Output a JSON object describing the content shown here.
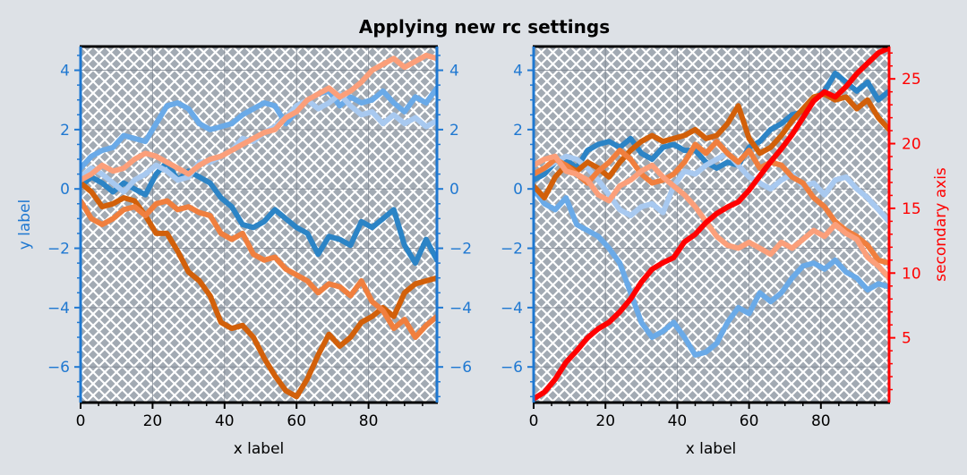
{
  "chart_data": [
    {
      "type": "line",
      "title": "Applying new rc settings",
      "xlabel": "x label",
      "ylabel": "y label",
      "xlim": [
        0,
        99
      ],
      "ylim": [
        -7.2,
        4.8
      ],
      "xticks": [
        "0",
        "20",
        "40",
        "60",
        "80"
      ],
      "yticks": [
        "−6",
        "−4",
        "−2",
        "0",
        "2",
        "4"
      ],
      "ytick_values": [
        -6,
        -4,
        -2,
        0,
        2,
        4
      ],
      "xtick_values": [
        0,
        20,
        40,
        60,
        80
      ],
      "grid": true,
      "hatch": "crosshatch",
      "axis_color": "#1f78d1",
      "series": [
        {
          "color": "#2c84c6",
          "x": [
            0,
            3,
            6,
            9,
            12,
            15,
            18,
            21,
            24,
            27,
            30,
            33,
            36,
            39,
            42,
            45,
            48,
            51,
            54,
            57,
            60,
            63,
            66,
            69,
            72,
            75,
            78,
            81,
            84,
            87,
            90,
            93,
            96,
            99
          ],
          "values": [
            0.1,
            0.4,
            0.2,
            -0.1,
            0.2,
            0.0,
            -0.2,
            0.5,
            0.9,
            0.3,
            0.6,
            0.4,
            0.2,
            -0.3,
            -0.6,
            -1.2,
            -1.3,
            -1.1,
            -0.7,
            -1.0,
            -1.3,
            -1.5,
            -2.2,
            -1.6,
            -1.7,
            -1.9,
            -1.1,
            -1.3,
            -1.0,
            -0.7,
            -1.9,
            -2.5,
            -1.7,
            -2.4
          ]
        },
        {
          "color": "#6aaae8",
          "x": [
            0,
            3,
            6,
            9,
            12,
            15,
            18,
            21,
            24,
            27,
            30,
            33,
            36,
            39,
            42,
            45,
            48,
            51,
            54,
            57,
            60,
            63,
            66,
            69,
            72,
            75,
            78,
            81,
            84,
            87,
            90,
            93,
            96,
            99
          ],
          "values": [
            0.7,
            1.1,
            1.3,
            1.4,
            1.8,
            1.7,
            1.6,
            2.2,
            2.8,
            2.9,
            2.7,
            2.2,
            2.0,
            2.1,
            2.2,
            2.5,
            2.7,
            2.9,
            2.8,
            2.2,
            2.6,
            3.0,
            3.2,
            3.3,
            2.8,
            3.1,
            2.9,
            3.0,
            3.3,
            2.9,
            2.6,
            3.1,
            2.9,
            3.4
          ]
        },
        {
          "color": "#a8c9f0",
          "x": [
            0,
            3,
            6,
            9,
            12,
            15,
            18,
            21,
            24,
            27,
            30,
            33,
            36,
            39,
            42,
            45,
            48,
            51,
            54,
            57,
            60,
            63,
            66,
            69,
            72,
            75,
            78,
            81,
            84,
            87,
            90,
            93,
            96,
            99
          ],
          "values": [
            0.4,
            0.7,
            0.5,
            0.2,
            -0.1,
            0.3,
            0.5,
            0.8,
            0.6,
            0.3,
            0.4,
            0.9,
            0.9,
            1.1,
            1.3,
            1.7,
            1.6,
            1.9,
            2.1,
            2.4,
            2.8,
            3.0,
            2.7,
            2.9,
            3.2,
            2.8,
            2.5,
            2.6,
            2.2,
            2.5,
            2.2,
            2.4,
            2.1,
            2.3
          ]
        },
        {
          "color": "#d2600a",
          "x": [
            0,
            3,
            6,
            9,
            12,
            15,
            18,
            21,
            24,
            27,
            30,
            33,
            36,
            39,
            42,
            45,
            48,
            51,
            54,
            57,
            60,
            63,
            66,
            69,
            72,
            75,
            78,
            81,
            84,
            87,
            90,
            93,
            96,
            99
          ],
          "values": [
            0.2,
            -0.1,
            -0.6,
            -0.5,
            -0.3,
            -0.4,
            -0.9,
            -1.5,
            -1.5,
            -2.1,
            -2.8,
            -3.1,
            -3.6,
            -4.5,
            -4.7,
            -4.6,
            -5.0,
            -5.7,
            -6.3,
            -6.8,
            -7.0,
            -6.4,
            -5.6,
            -4.9,
            -5.3,
            -5.0,
            -4.5,
            -4.3,
            -4.0,
            -4.3,
            -3.5,
            -3.2,
            -3.1,
            -3.0
          ]
        },
        {
          "color": "#f07f3e",
          "x": [
            0,
            3,
            6,
            9,
            12,
            15,
            18,
            21,
            24,
            27,
            30,
            33,
            36,
            39,
            42,
            45,
            48,
            51,
            54,
            57,
            60,
            63,
            66,
            69,
            72,
            75,
            78,
            81,
            84,
            87,
            90,
            93,
            96,
            99
          ],
          "values": [
            -0.4,
            -1.0,
            -1.2,
            -1.0,
            -0.7,
            -0.6,
            -0.9,
            -0.5,
            -0.4,
            -0.7,
            -0.6,
            -0.8,
            -0.9,
            -1.5,
            -1.7,
            -1.5,
            -2.2,
            -2.4,
            -2.3,
            -2.7,
            -2.9,
            -3.1,
            -3.5,
            -3.2,
            -3.3,
            -3.6,
            -3.1,
            -3.8,
            -4.1,
            -4.7,
            -4.4,
            -5.0,
            -4.6,
            -4.3
          ]
        },
        {
          "color": "#fb9f7a",
          "x": [
            0,
            3,
            6,
            9,
            12,
            15,
            18,
            21,
            24,
            27,
            30,
            33,
            36,
            39,
            42,
            45,
            48,
            51,
            54,
            57,
            60,
            63,
            66,
            69,
            72,
            75,
            78,
            81,
            84,
            87,
            90,
            93,
            96,
            99
          ],
          "values": [
            0.3,
            0.5,
            0.8,
            0.6,
            0.7,
            1.0,
            1.2,
            1.1,
            0.9,
            0.7,
            0.5,
            0.8,
            1.0,
            1.1,
            1.3,
            1.5,
            1.7,
            1.9,
            2.0,
            2.4,
            2.6,
            3.0,
            3.2,
            3.4,
            3.1,
            3.3,
            3.6,
            4.0,
            4.2,
            4.4,
            4.1,
            4.3,
            4.5,
            4.4
          ]
        }
      ]
    },
    {
      "type": "line",
      "xlabel": "x label",
      "ylabel": "",
      "y2label": "secondary axis",
      "xlim": [
        0,
        99
      ],
      "ylim": [
        -7.2,
        4.8
      ],
      "y2lim": [
        0,
        27.5
      ],
      "xticks": [
        "0",
        "20",
        "40",
        "60",
        "80"
      ],
      "xtick_values": [
        0,
        20,
        40,
        60,
        80
      ],
      "yticks": [
        "−6",
        "−4",
        "−2",
        "0",
        "2",
        "4"
      ],
      "ytick_values": [
        -6,
        -4,
        -2,
        0,
        2,
        4
      ],
      "y2ticks": [
        "5",
        "10",
        "15",
        "20",
        "25"
      ],
      "y2tick_values": [
        5,
        10,
        15,
        20,
        25
      ],
      "grid": true,
      "hatch": "crosshatch",
      "axis_color": "#1f78d1",
      "y2_color": "#ff0000",
      "series": [
        {
          "color": "#2c84c6",
          "x": [
            0,
            3,
            6,
            9,
            12,
            15,
            18,
            21,
            24,
            27,
            30,
            33,
            36,
            39,
            42,
            45,
            48,
            51,
            54,
            57,
            60,
            63,
            66,
            69,
            72,
            75,
            78,
            81,
            84,
            87,
            90,
            93,
            96,
            99
          ],
          "values": [
            0.3,
            0.5,
            0.9,
            1.0,
            0.7,
            1.3,
            1.5,
            1.6,
            1.4,
            1.7,
            1.2,
            1.0,
            1.4,
            1.5,
            1.3,
            1.3,
            0.9,
            0.7,
            0.9,
            0.8,
            1.4,
            1.6,
            2.0,
            2.2,
            2.5,
            2.6,
            3.0,
            3.3,
            3.9,
            3.6,
            3.3,
            3.6,
            3.0,
            3.3
          ]
        },
        {
          "color": "#6aaae8",
          "x": [
            0,
            3,
            6,
            9,
            12,
            15,
            18,
            21,
            24,
            27,
            30,
            33,
            36,
            39,
            42,
            45,
            48,
            51,
            54,
            57,
            60,
            63,
            66,
            69,
            72,
            75,
            78,
            81,
            84,
            87,
            90,
            93,
            96,
            99
          ],
          "values": [
            0.0,
            -0.5,
            -0.7,
            -0.3,
            -1.2,
            -1.4,
            -1.6,
            -2.0,
            -2.5,
            -3.5,
            -4.5,
            -5.0,
            -4.8,
            -4.5,
            -5.0,
            -5.6,
            -5.5,
            -5.2,
            -4.5,
            -4.0,
            -4.2,
            -3.5,
            -3.8,
            -3.5,
            -3.0,
            -2.6,
            -2.5,
            -2.7,
            -2.4,
            -2.8,
            -3.0,
            -3.4,
            -3.2,
            -3.3
          ]
        },
        {
          "color": "#a8c9f0",
          "x": [
            0,
            3,
            6,
            9,
            12,
            15,
            18,
            21,
            24,
            27,
            30,
            33,
            36,
            39,
            42,
            45,
            48,
            51,
            54,
            57,
            60,
            63,
            66,
            69,
            72,
            75,
            78,
            81,
            84,
            87,
            90,
            93,
            96,
            99
          ],
          "values": [
            0.5,
            0.7,
            0.9,
            1.1,
            1.0,
            0.7,
            0.3,
            -0.2,
            -0.7,
            -0.9,
            -0.6,
            -0.5,
            -0.8,
            0.1,
            0.6,
            0.5,
            0.8,
            1.0,
            1.2,
            0.8,
            0.4,
            0.2,
            0.0,
            0.3,
            0.5,
            0.1,
            0.2,
            -0.2,
            0.3,
            0.4,
            0.0,
            -0.3,
            -0.7,
            -1.1
          ]
        },
        {
          "color": "#d2600a",
          "x": [
            0,
            3,
            6,
            9,
            12,
            15,
            18,
            21,
            24,
            27,
            30,
            33,
            36,
            39,
            42,
            45,
            48,
            51,
            54,
            57,
            60,
            63,
            66,
            69,
            72,
            75,
            78,
            81,
            84,
            87,
            90,
            93,
            96,
            99
          ],
          "values": [
            0.1,
            -0.3,
            0.4,
            0.8,
            0.6,
            0.9,
            0.7,
            0.4,
            0.9,
            1.3,
            1.6,
            1.8,
            1.6,
            1.7,
            1.8,
            2.0,
            1.7,
            1.8,
            2.2,
            2.8,
            1.7,
            1.2,
            1.4,
            1.8,
            2.3,
            2.7,
            3.1,
            3.2,
            3.0,
            3.1,
            2.7,
            3.0,
            2.4,
            2.0
          ]
        },
        {
          "color": "#f07f3e",
          "x": [
            0,
            3,
            6,
            9,
            12,
            15,
            18,
            21,
            24,
            27,
            30,
            33,
            36,
            39,
            42,
            45,
            48,
            51,
            54,
            57,
            60,
            63,
            66,
            69,
            72,
            75,
            78,
            81,
            84,
            87,
            90,
            93,
            96,
            99
          ],
          "values": [
            0.5,
            0.7,
            1.0,
            0.8,
            0.5,
            0.2,
            0.6,
            0.9,
            1.3,
            1.0,
            0.5,
            0.2,
            0.3,
            0.5,
            0.9,
            1.5,
            1.2,
            1.6,
            1.2,
            0.9,
            1.3,
            0.7,
            0.9,
            0.8,
            0.4,
            0.2,
            -0.3,
            -0.6,
            -1.1,
            -1.4,
            -1.6,
            -1.9,
            -2.4,
            -2.5
          ]
        },
        {
          "color": "#fb9f7a",
          "x": [
            0,
            3,
            6,
            9,
            12,
            15,
            18,
            21,
            24,
            27,
            30,
            33,
            36,
            39,
            42,
            45,
            48,
            51,
            54,
            57,
            60,
            63,
            66,
            69,
            72,
            75,
            78,
            81,
            84,
            87,
            90,
            93,
            96,
            99
          ],
          "values": [
            0.8,
            1.0,
            1.1,
            0.6,
            0.5,
            0.3,
            -0.2,
            -0.4,
            0.1,
            0.3,
            0.6,
            0.8,
            0.4,
            0.1,
            -0.2,
            -0.6,
            -1.1,
            -1.6,
            -1.9,
            -2.0,
            -1.8,
            -2.0,
            -2.2,
            -1.8,
            -2.0,
            -1.7,
            -1.4,
            -1.6,
            -1.2,
            -1.5,
            -1.7,
            -2.3,
            -2.6,
            -3.0
          ]
        },
        {
          "color": "#ff0000",
          "axis": "y2",
          "x": [
            0,
            3,
            6,
            9,
            12,
            15,
            18,
            21,
            24,
            27,
            30,
            33,
            36,
            39,
            42,
            45,
            48,
            51,
            54,
            57,
            60,
            63,
            66,
            69,
            72,
            75,
            78,
            81,
            84,
            87,
            90,
            93,
            96,
            99
          ],
          "values": [
            0.3,
            0.8,
            1.8,
            3.1,
            4.0,
            5.0,
            5.7,
            6.2,
            7.0,
            8.0,
            9.3,
            10.3,
            10.8,
            11.2,
            12.4,
            13.0,
            13.9,
            14.6,
            15.1,
            15.5,
            16.4,
            17.5,
            18.6,
            19.6,
            20.7,
            22.0,
            23.3,
            24.0,
            23.6,
            24.4,
            25.4,
            26.2,
            27.0,
            27.4
          ]
        }
      ]
    }
  ]
}
